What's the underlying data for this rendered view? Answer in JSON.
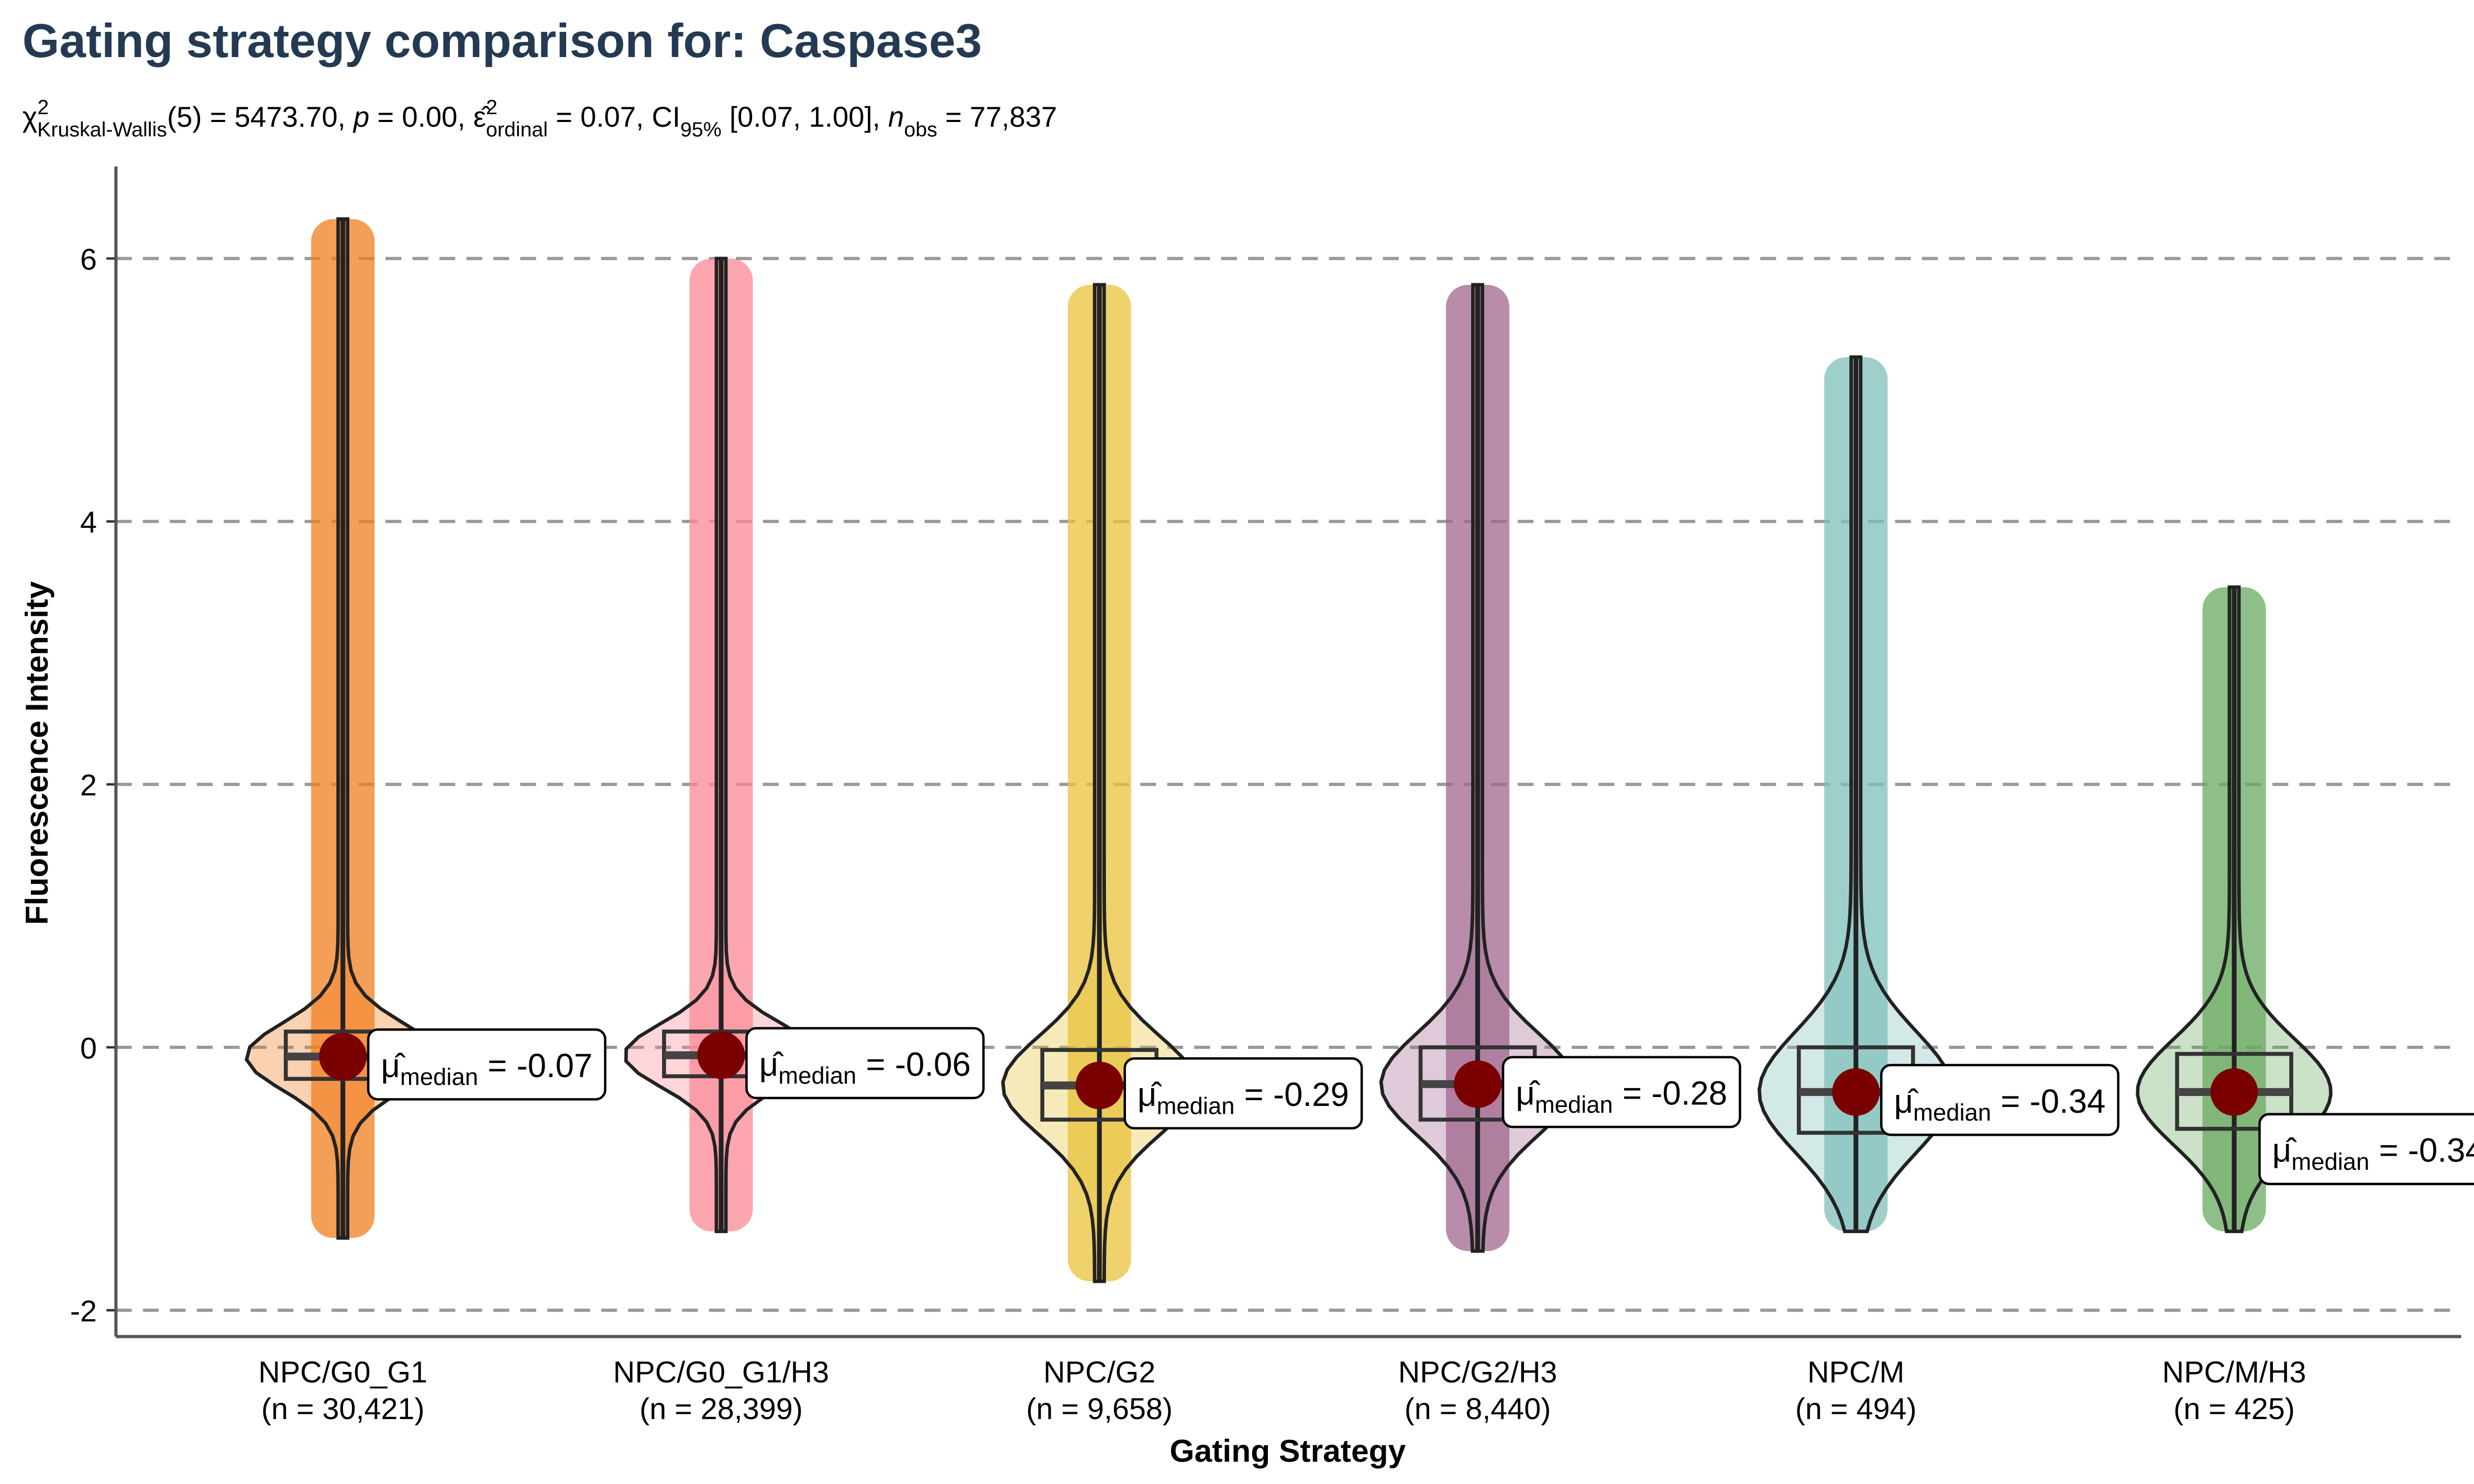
{
  "chart_data": {
    "type": "violin",
    "title": "Gating strategy comparison for: Caspase3",
    "subtitle_parts": [
      {
        "text": "χ",
        "sup": "2",
        "sub": "Kruskal-Wallis"
      },
      {
        "text": "(5) = 5473.70, "
      },
      {
        "text": "p",
        "italic": true
      },
      {
        "text": " = 0.00, "
      },
      {
        "text": "ε̂",
        "sup": "2",
        "sub": "ordinal"
      },
      {
        "text": " = 0.07, "
      },
      {
        "text": "CI",
        "sub": "95%"
      },
      {
        "text": " [0.07, 1.00], "
      },
      {
        "text": "n",
        "italic": true,
        "sub": "obs"
      },
      {
        "text": " = 77,837"
      }
    ],
    "x_label": "Gating Strategy",
    "y_label": "Fluorescence Intensity",
    "categories": [
      "NPC/G0_G1",
      "NPC/G0_G1/H3",
      "NPC/G2",
      "NPC/G2/H3",
      "NPC/M",
      "NPC/M/H3"
    ],
    "category_counts": [
      {
        "value": 30421,
        "label": "(n = 30,421)"
      },
      {
        "value": 28399,
        "label": "(n = 28,399)"
      },
      {
        "value": 9658,
        "label": "(n = 9,658)"
      },
      {
        "value": 8440,
        "label": "(n = 8,440)"
      },
      {
        "value": 494,
        "label": "(n = 494)"
      },
      {
        "value": 425,
        "label": "(n = 425)"
      }
    ],
    "colors": [
      "#f07f1f",
      "#fb8a96",
      "#e9c33a",
      "#a0668e",
      "#7fbfba",
      "#6aaa60"
    ],
    "values": [
      -0.07,
      -0.06,
      -0.29,
      -0.28,
      -0.34,
      -0.34
    ],
    "median_symbol": "μ̂",
    "median_subscript": "median",
    "median_equals": "=",
    "q1": [
      -0.24,
      -0.22,
      -0.55,
      -0.55,
      -0.65,
      -0.62
    ],
    "q3": [
      0.12,
      0.12,
      -0.02,
      0.0,
      0.0,
      -0.05
    ],
    "min": [
      -1.45,
      -1.4,
      -1.78,
      -1.55,
      -1.4,
      -1.4
    ],
    "max": [
      6.3,
      6.0,
      5.8,
      5.8,
      5.25,
      3.5
    ],
    "median_point_color": "#7a0000",
    "ylim": [
      -2.2,
      6.7
    ],
    "yticks": [
      -2,
      0,
      2,
      4,
      6
    ],
    "grid": true
  }
}
